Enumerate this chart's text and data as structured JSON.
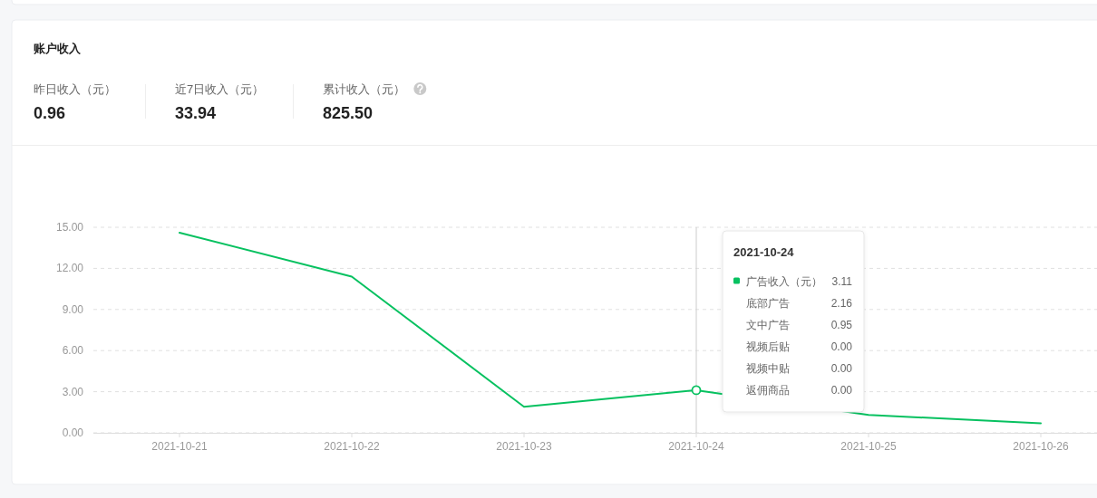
{
  "chart_data": {
    "type": "line",
    "title": "账户收入",
    "categories": [
      "2021-10-21",
      "2021-10-22",
      "2021-10-23",
      "2021-10-24",
      "2021-10-25",
      "2021-10-26"
    ],
    "series": [
      {
        "name": "广告收入（元）",
        "color": "#07c160",
        "values": [
          14.6,
          11.4,
          1.9,
          3.11,
          1.3,
          0.7
        ]
      }
    ],
    "ylim": [
      0,
      15
    ],
    "yticks": [
      {
        "value": 0,
        "label": "0.00"
      },
      {
        "value": 3,
        "label": "3.00"
      },
      {
        "value": 6,
        "label": "6.00"
      },
      {
        "value": 9,
        "label": "9.00"
      },
      {
        "value": 12,
        "label": "12.00"
      },
      {
        "value": 15,
        "label": "15.00"
      }
    ],
    "grid": "y",
    "ref_lines": [
      {
        "axis": "x",
        "value": "2021-10-24",
        "color": "#cccccc"
      }
    ],
    "annotations": [
      "昨日收入（元）",
      "0.96",
      "近7日收入（元）",
      "33.94",
      "累计收入（元）",
      "825.50",
      "2021-10-24",
      "3.11",
      "底部广告",
      "2.16",
      "文中广告",
      "0.95",
      "视频后贴",
      "0.00",
      "视频中贴",
      "0.00",
      "返佣商品",
      "0.00"
    ]
  }
}
